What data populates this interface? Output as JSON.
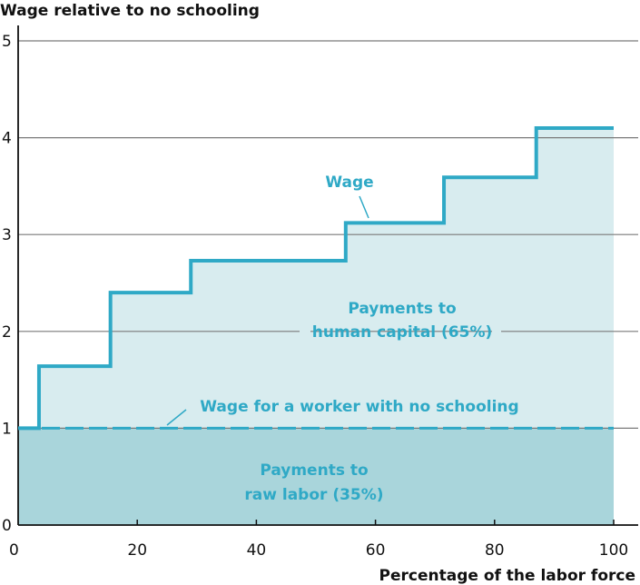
{
  "chart_data": {
    "type": "area",
    "title": "",
    "ylabel": "Wage relative to no schooling",
    "xlabel": "Percentage of the labor force",
    "xlim": [
      0,
      100
    ],
    "ylim": [
      0,
      5
    ],
    "x_ticks": [
      "0",
      "20",
      "40",
      "60",
      "80",
      "100"
    ],
    "y_ticks": [
      "0",
      "1",
      "2",
      "3",
      "4",
      "5"
    ],
    "grid": "horizontal",
    "series": [
      {
        "name": "Wage",
        "step": true,
        "x": [
          0,
          3.5,
          15.5,
          29,
          55,
          71.5,
          87,
          100
        ],
        "y": [
          1,
          1.64,
          2.4,
          2.73,
          3.12,
          3.59,
          4.1,
          4.1
        ]
      },
      {
        "name": "Wage for a worker with no schooling",
        "style": "dashed",
        "x": [
          0,
          100
        ],
        "y": [
          1,
          1
        ]
      }
    ],
    "regions": [
      {
        "label_lines": [
          "Payments to",
          "human capital (65%)"
        ]
      },
      {
        "label_lines": [
          "Payments to",
          "raw labor (35%)"
        ]
      }
    ],
    "colors": {
      "line": "#2fa9c6",
      "human_capital_fill": "#d8ecef",
      "raw_labor_fill": "#a9d5db",
      "grid": "#7a7a7a",
      "axis": "#111111"
    }
  }
}
